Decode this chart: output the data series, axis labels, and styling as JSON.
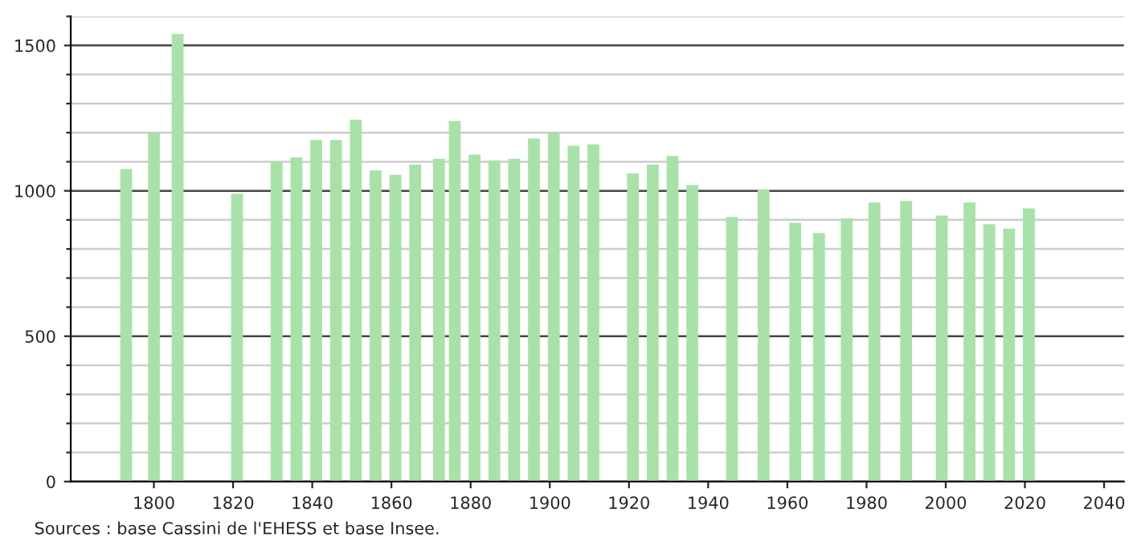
{
  "chart_data": {
    "type": "bar",
    "annotations": [
      "Sources : base Cassini de l'EHESS et base Insee."
    ],
    "x": [
      1793,
      1800,
      1806,
      1821,
      1831,
      1836,
      1841,
      1846,
      1851,
      1856,
      1861,
      1866,
      1872,
      1876,
      1881,
      1886,
      1891,
      1896,
      1901,
      1906,
      1911,
      1921,
      1926,
      1931,
      1936,
      1946,
      1954,
      1962,
      1968,
      1975,
      1982,
      1990,
      1999,
      2006,
      2011,
      2016,
      2021
    ],
    "values": [
      1075,
      1200,
      1540,
      990,
      1100,
      1115,
      1175,
      1175,
      1245,
      1070,
      1055,
      1090,
      1110,
      1240,
      1125,
      1105,
      1110,
      1180,
      1200,
      1155,
      1160,
      1060,
      1090,
      1120,
      1020,
      910,
      1005,
      890,
      855,
      905,
      960,
      965,
      915,
      960,
      885,
      870,
      940
    ],
    "color": "#a8e2a8",
    "xlim": [
      1779,
      2045
    ],
    "xticks": [
      1800,
      1820,
      1840,
      1860,
      1880,
      1900,
      1920,
      1940,
      1960,
      1980,
      2000,
      2020,
      2040
    ],
    "ylim": [
      0,
      1600
    ],
    "yticks": [
      0,
      {
        "value": 100,
        "label": null
      },
      {
        "value": 200,
        "label": null
      },
      {
        "value": 300,
        "label": null
      },
      {
        "value": 400,
        "label": null
      },
      500,
      {
        "value": 600,
        "label": null
      },
      {
        "value": 700,
        "label": null
      },
      {
        "value": 800,
        "label": null
      },
      {
        "value": 900,
        "label": null
      },
      1000,
      {
        "value": 1100,
        "label": null
      },
      {
        "value": 1200,
        "label": null
      },
      {
        "value": 1300,
        "label": null
      },
      {
        "value": 1400,
        "label": null
      },
      1500,
      {
        "value": 1600,
        "label": null
      }
    ],
    "grid": "y"
  }
}
